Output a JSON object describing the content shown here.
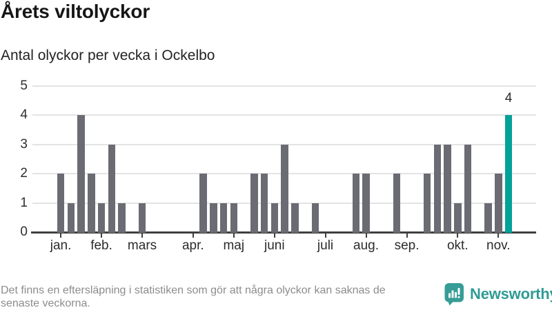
{
  "page": {
    "title": "Årets viltolyckor",
    "subtitle": "Antal olyckor per vecka i Ockelbo"
  },
  "chart_data": {
    "type": "bar",
    "title": "Årets viltolyckor",
    "subtitle": "Antal olyckor per vecka i Ockelbo",
    "xlabel": "",
    "ylabel": "",
    "x_unit": "vecka (week 1–45 of the year)",
    "values": [
      2,
      1,
      4,
      2,
      1,
      3,
      1,
      0,
      1,
      0,
      0,
      0,
      0,
      0,
      2,
      1,
      1,
      1,
      0,
      2,
      2,
      1,
      3,
      1,
      0,
      1,
      0,
      0,
      0,
      2,
      2,
      0,
      0,
      2,
      0,
      0,
      2,
      3,
      3,
      1,
      3,
      0,
      1,
      2,
      4
    ],
    "highlight": {
      "week": 45,
      "value": 4,
      "label": "4"
    },
    "ylim": [
      0,
      5
    ],
    "yticks": [
      0,
      1,
      2,
      3,
      4,
      5
    ],
    "month_ticks": [
      {
        "label": "jan.",
        "week": 1
      },
      {
        "label": "feb.",
        "week": 5
      },
      {
        "label": "mars",
        "week": 9
      },
      {
        "label": "apr.",
        "week": 14
      },
      {
        "label": "maj",
        "week": 18
      },
      {
        "label": "juni",
        "week": 22
      },
      {
        "label": "juli",
        "week": 27
      },
      {
        "label": "aug.",
        "week": 31
      },
      {
        "label": "sep.",
        "week": 35
      },
      {
        "label": "okt.",
        "week": 40
      },
      {
        "label": "nov.",
        "week": 44
      }
    ],
    "grid": true,
    "legend": null
  },
  "colors": {
    "bar": "#6b6b73",
    "accent": "#00a29a",
    "axis": "#3f3f3f",
    "gridline": "#e3e3e3",
    "text": "#2b2b2b",
    "footer_text": "#8c8c8c",
    "brand": "#2f9b94"
  },
  "footer": {
    "disclaimer_lines": [
      "Det finns en eftersläpning i statistiken som gör att några olyckor kan saknas de",
      "senaste veckorna."
    ],
    "brand_name": "Newsworthy"
  }
}
